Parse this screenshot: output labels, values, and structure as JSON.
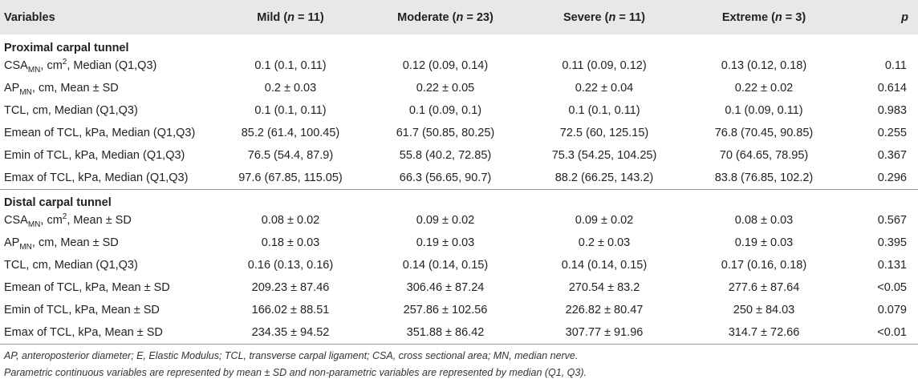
{
  "table": {
    "headers": {
      "variables": "Variables",
      "mild": {
        "label": "Mild (",
        "n": "n",
        "count": " = 11)"
      },
      "moderate": {
        "label": "Moderate (",
        "n": "n",
        "count": " = 23)"
      },
      "severe": {
        "label": "Severe (",
        "n": "n",
        "count": " = 11)"
      },
      "extreme": {
        "label": "Extreme (",
        "n": "n",
        "count": " = 3)"
      },
      "p": "p"
    },
    "sections": [
      {
        "title": "Proximal carpal tunnel",
        "rows": [
          {
            "variable": {
              "pre": "CSA",
              "sub": "MN",
              "mid": ", cm",
              "sup": "2",
              "post": ", Median (Q1,Q3)"
            },
            "mild": "0.1 (0.1, 0.11)",
            "moderate": "0.12 (0.09, 0.14)",
            "severe": "0.11 (0.09, 0.12)",
            "extreme": "0.13 (0.12, 0.18)",
            "p": "0.11"
          },
          {
            "variable": {
              "pre": "AP",
              "sub": "MN",
              "mid": ", cm, Mean ± SD"
            },
            "mild": "0.2 ± 0.03",
            "moderate": "0.22 ± 0.05",
            "severe": "0.22 ± 0.04",
            "extreme": "0.22 ± 0.02",
            "p": "0.614"
          },
          {
            "variable": {
              "pre": "TCL, cm, Median (Q1,Q3)"
            },
            "mild": "0.1 (0.1, 0.11)",
            "moderate": "0.1 (0.09, 0.1)",
            "severe": "0.1 (0.1, 0.11)",
            "extreme": "0.1 (0.09, 0.11)",
            "p": "0.983"
          },
          {
            "variable": {
              "pre": "Emean of TCL, kPa, Median (Q1,Q3)"
            },
            "mild": "85.2 (61.4, 100.45)",
            "moderate": "61.7 (50.85, 80.25)",
            "severe": "72.5 (60, 125.15)",
            "extreme": "76.8 (70.45, 90.85)",
            "p": "0.255"
          },
          {
            "variable": {
              "pre": "Emin of TCL, kPa, Median (Q1,Q3)"
            },
            "mild": "76.5 (54.4, 87.9)",
            "moderate": "55.8 (40.2, 72.85)",
            "severe": "75.3 (54.25, 104.25)",
            "extreme": "70 (64.65, 78.95)",
            "p": "0.367"
          },
          {
            "variable": {
              "pre": "Emax of TCL, kPa, Median (Q1,Q3)"
            },
            "mild": "97.6 (67.85, 115.05)",
            "moderate": "66.3 (56.65, 90.7)",
            "severe": "88.2 (66.25, 143.2)",
            "extreme": "83.8 (76.85, 102.2)",
            "p": "0.296"
          }
        ]
      },
      {
        "title": "Distal carpal tunnel",
        "rows": [
          {
            "variable": {
              "pre": "CSA",
              "sub": "MN",
              "mid": ", cm",
              "sup": "2",
              "post": ", Mean ± SD"
            },
            "mild": "0.08 ± 0.02",
            "moderate": "0.09 ± 0.02",
            "severe": "0.09 ± 0.02",
            "extreme": "0.08 ± 0.03",
            "p": "0.567"
          },
          {
            "variable": {
              "pre": "AP",
              "sub": "MN",
              "mid": ", cm, Mean ± SD"
            },
            "mild": "0.18 ± 0.03",
            "moderate": "0.19 ± 0.03",
            "severe": "0.2 ± 0.03",
            "extreme": "0.19 ± 0.03",
            "p": "0.395"
          },
          {
            "variable": {
              "pre": "TCL, cm, Median (Q1,Q3)"
            },
            "mild": "0.16 (0.13, 0.16)",
            "moderate": "0.14 (0.14, 0.15)",
            "severe": "0.14 (0.14, 0.15)",
            "extreme": "0.17 (0.16, 0.18)",
            "p": "0.131"
          },
          {
            "variable": {
              "pre": "Emean of TCL, kPa, Mean ± SD"
            },
            "mild": "209.23 ± 87.46",
            "moderate": "306.46 ± 87.24",
            "severe": "270.54 ± 83.2",
            "extreme": "277.6 ± 87.64",
            "p": "<0.05"
          },
          {
            "variable": {
              "pre": "Emin of TCL, kPa, Mean ± SD"
            },
            "mild": "166.02 ± 88.51",
            "moderate": "257.86 ± 102.56",
            "severe": "226.82 ± 80.47",
            "extreme": "250 ± 84.03",
            "p": "0.079"
          },
          {
            "variable": {
              "pre": "Emax of TCL, kPa, Mean ± SD"
            },
            "mild": "234.35 ± 94.52",
            "moderate": "351.88 ± 86.42",
            "severe": "307.77 ± 91.96",
            "extreme": "314.7 ± 72.66",
            "p": "<0.01"
          }
        ]
      }
    ]
  },
  "notes": {
    "line1": "AP, anteroposterior diameter; E, Elastic Modulus; TCL, transverse carpal ligament; CSA, cross sectional area; MN, median nerve.",
    "line2": "Parametric continuous variables are represented by mean ± SD and non-parametric variables are represented by median (Q1, Q3)."
  }
}
